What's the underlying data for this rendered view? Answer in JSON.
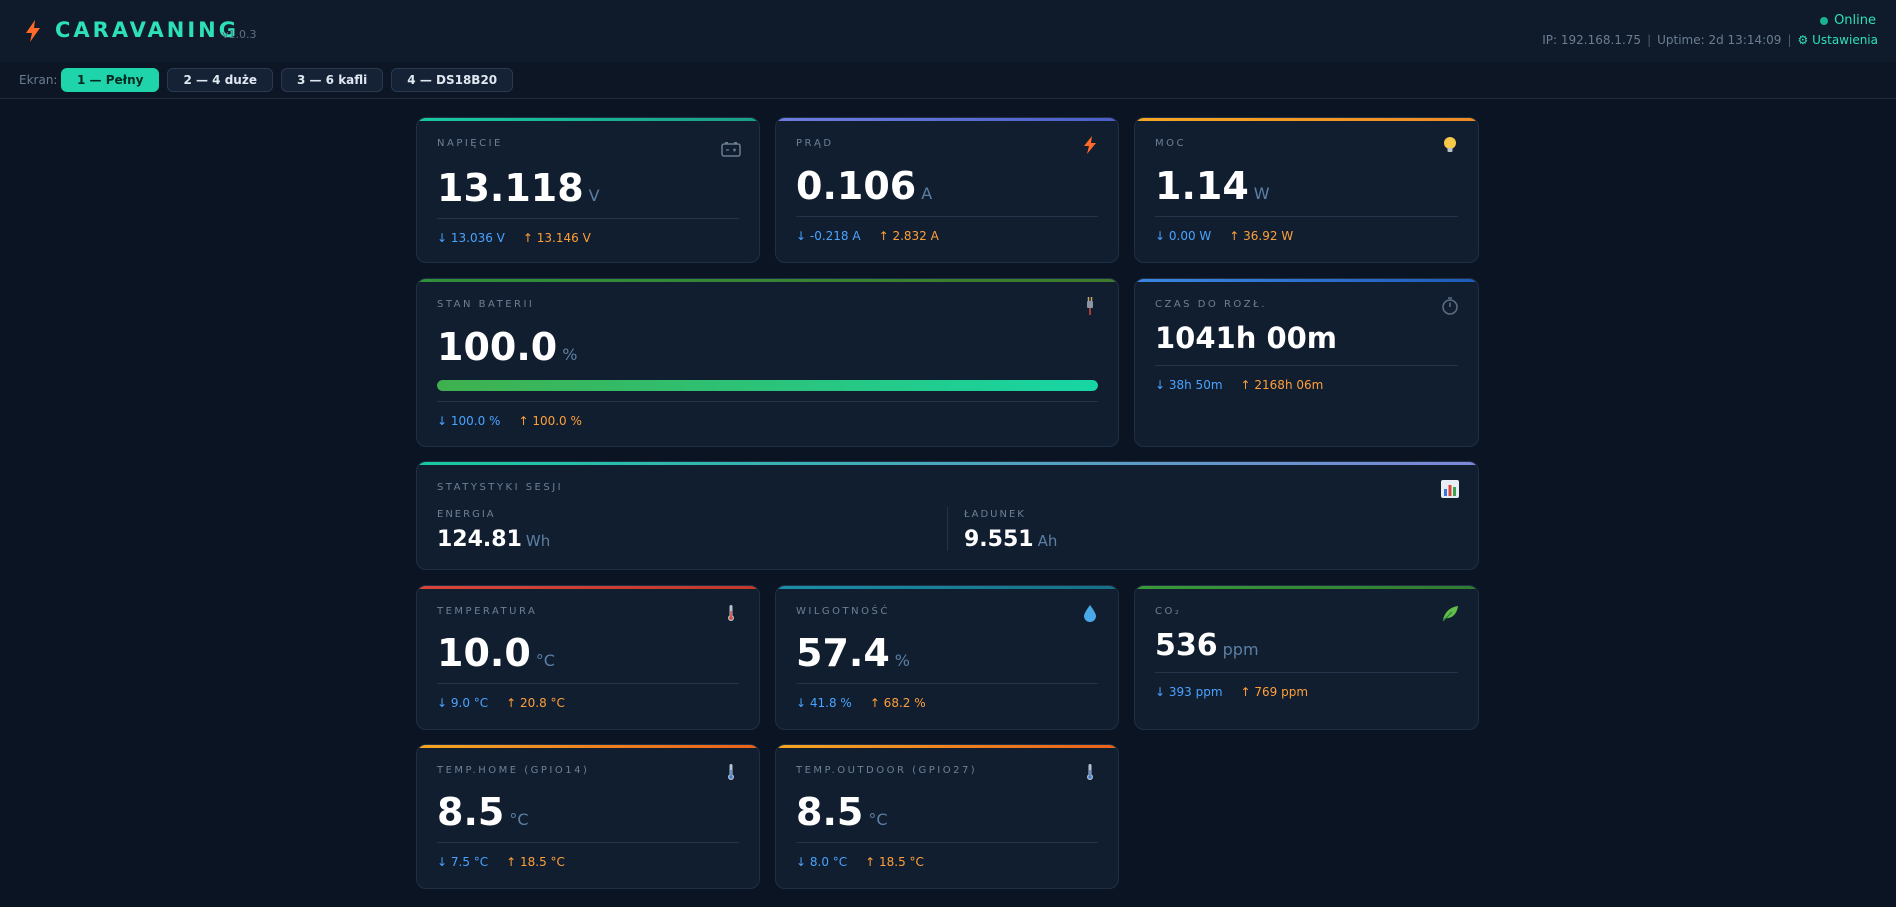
{
  "header": {
    "brand": "CARAVANING",
    "version": "v1.0.3",
    "status": "Online",
    "ip": "IP: 192.168.1.75",
    "uptime": "Uptime: 2d 13:14:09",
    "settings": "⚙ Ustawienia",
    "colors": {
      "accent": "#2ee0b7",
      "bolt": "#ff6a2a"
    }
  },
  "toolbar": {
    "label": "Ekran:",
    "tabs": [
      {
        "label": "1 — Pełny",
        "active": true
      },
      {
        "label": "2 — 4 duże",
        "active": false
      },
      {
        "label": "3 — 6 kafli",
        "active": false
      },
      {
        "label": "4 — DS18B20",
        "active": false
      }
    ]
  },
  "cards": {
    "voltage": {
      "label": "NAPIĘCIE",
      "value": "13.118",
      "unit": "V",
      "min": "↓ 13.036 V",
      "max": "↑ 13.146 V",
      "icon": "battery-icon",
      "accent": "#17c9a0"
    },
    "current": {
      "label": "PRĄD",
      "value": "0.106",
      "unit": "A",
      "min": "↓ -0.218 A",
      "max": "↑ 2.832 A",
      "icon": "bolt-icon",
      "accent": "#5b6fd6"
    },
    "power": {
      "label": "MOC",
      "value": "1.14",
      "unit": "W",
      "min": "↓ 0.00 W",
      "max": "↑ 36.92 W",
      "icon": "bulb-icon",
      "accent": "#f5a623"
    },
    "battery": {
      "label": "STAN BATERII",
      "value": "100.0",
      "unit": "%",
      "min": "↓ 100.0 %",
      "max": "↑ 100.0 %",
      "level_percent": 100,
      "icon": "plug-icon",
      "accent": "#2f8f3a"
    },
    "runtime": {
      "label": "CZAS DO ROZŁ.",
      "value": "1041h 00m",
      "min": "↓ 38h 50m",
      "max": "↑ 2168h 06m",
      "icon": "stopwatch-icon",
      "accent": "#2b6fd1"
    },
    "session": {
      "label": "STATYSTYKI SESJI",
      "energy_label": "ENERGIA",
      "energy_value": "124.81",
      "energy_unit": "Wh",
      "charge_label": "ŁADUNEK",
      "charge_value": "9.551",
      "charge_unit": "Ah",
      "icon": "bar-chart-icon"
    },
    "temperature": {
      "label": "TEMPERATURA",
      "value": "10.0",
      "unit": "°C",
      "min": "↓ 9.0 °C",
      "max": "↑ 20.8 °C",
      "icon": "thermometer-icon",
      "accent": "#d9453a"
    },
    "humidity": {
      "label": "WILGOTNOŚĆ",
      "value": "57.4",
      "unit": "%",
      "min": "↓ 41.8 %",
      "max": "↑ 68.2 %",
      "icon": "droplet-icon",
      "accent": "#1a8fa8"
    },
    "co2": {
      "label": "CO₂",
      "value": "536",
      "unit": "ppm",
      "min": "↓ 393 ppm",
      "max": "↑ 769 ppm",
      "icon": "leaf-icon",
      "accent": "#3a9a3a"
    },
    "temp_home": {
      "label": "TEMP.HOME (GPIO14)",
      "value": "8.5",
      "unit": "°C",
      "min": "↓ 7.5 °C",
      "max": "↑ 18.5 °C",
      "icon": "thermometer-icon",
      "accent": "#f08a24"
    },
    "temp_outdoor": {
      "label": "TEMP.OUTDOOR (GPIO27)",
      "value": "8.5",
      "unit": "°C",
      "min": "↓ 8.0 °C",
      "max": "↑ 18.5 °C",
      "icon": "thermometer-icon",
      "accent": "#f08a24"
    }
  }
}
